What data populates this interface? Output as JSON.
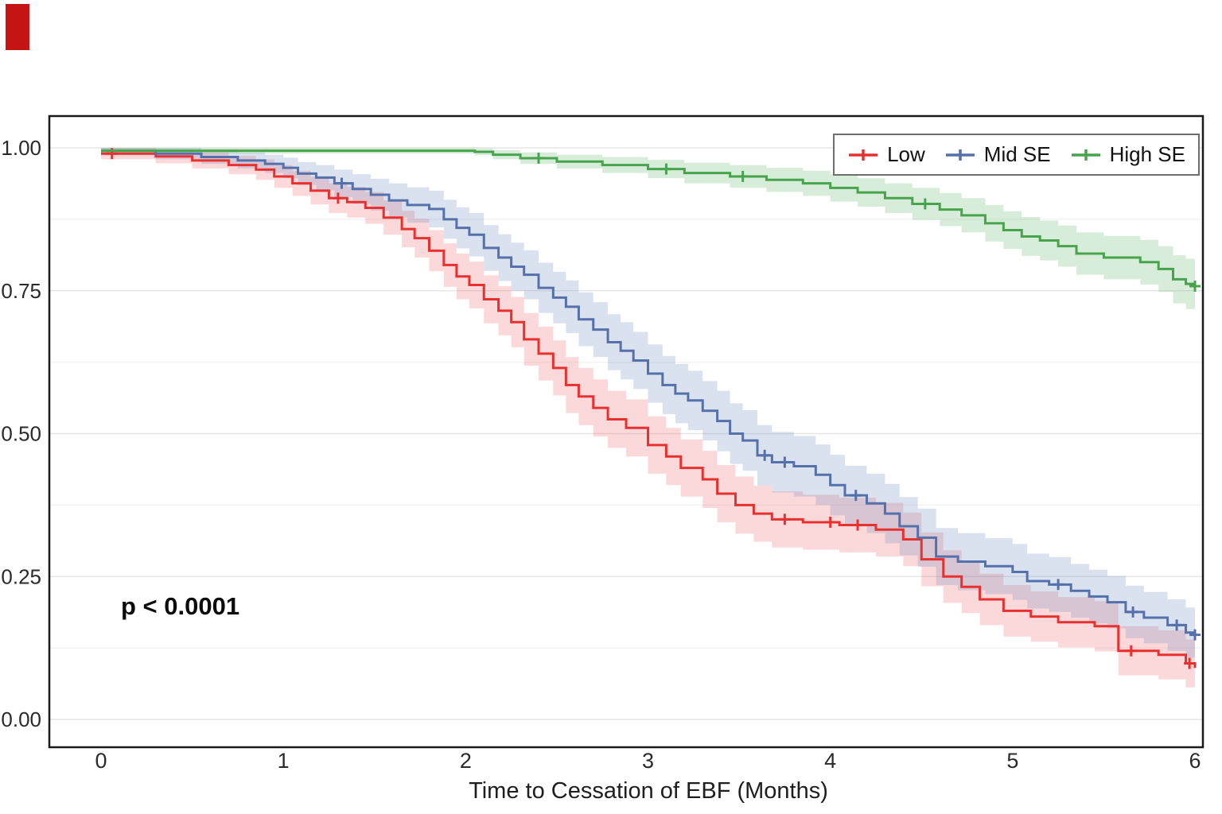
{
  "page": {
    "background": "#ffffff"
  },
  "corner_marker": {
    "color": "#c41414"
  },
  "chart_data": {
    "type": "line",
    "subtype": "kaplan_meier_step",
    "title": "",
    "xlabel": "Time to Cessation of EBF (Months)",
    "ylabel": "",
    "xlim": [
      0,
      6
    ],
    "ylim": [
      0,
      1.05
    ],
    "xticks": [
      "0",
      "1",
      "2",
      "3",
      "4",
      "5",
      "6"
    ],
    "yticks": [
      "0.00",
      "0.25",
      "0.50",
      "0.75",
      "1.00"
    ],
    "gridlines": [
      0,
      0.25,
      0.5,
      0.75,
      1.0
    ],
    "minor_gridlines": [
      0.125,
      0.375,
      0.625,
      0.875
    ],
    "grid_color": "#e6e6e6",
    "minor_grid_color": "#f3f3f3",
    "frame_color": "#1a1a1a",
    "annotation": "p < 0.0001",
    "legend_position": "top-right",
    "series": [
      {
        "name": "Low",
        "color": "#e8312f",
        "band_color": "rgba(238,80,90,0.22)",
        "points": [
          [
            0.0,
            0.99,
            0.01
          ],
          [
            0.3,
            0.985,
            0.012
          ],
          [
            0.5,
            0.978,
            0.014
          ],
          [
            0.7,
            0.97,
            0.016
          ],
          [
            0.85,
            0.962,
            0.018
          ],
          [
            0.95,
            0.95,
            0.02
          ],
          [
            1.05,
            0.938,
            0.022
          ],
          [
            1.15,
            0.925,
            0.024
          ],
          [
            1.25,
            0.912,
            0.026
          ],
          [
            1.35,
            0.905,
            0.027
          ],
          [
            1.45,
            0.895,
            0.028
          ],
          [
            1.55,
            0.878,
            0.03
          ],
          [
            1.65,
            0.858,
            0.032
          ],
          [
            1.72,
            0.842,
            0.034
          ],
          [
            1.8,
            0.82,
            0.036
          ],
          [
            1.88,
            0.795,
            0.038
          ],
          [
            1.95,
            0.775,
            0.04
          ],
          [
            2.02,
            0.76,
            0.041
          ],
          [
            2.1,
            0.735,
            0.042
          ],
          [
            2.18,
            0.715,
            0.043
          ],
          [
            2.25,
            0.695,
            0.044
          ],
          [
            2.32,
            0.665,
            0.046
          ],
          [
            2.4,
            0.64,
            0.047
          ],
          [
            2.48,
            0.615,
            0.048
          ],
          [
            2.55,
            0.585,
            0.049
          ],
          [
            2.62,
            0.565,
            0.05
          ],
          [
            2.7,
            0.545,
            0.05
          ],
          [
            2.78,
            0.525,
            0.05
          ],
          [
            2.88,
            0.51,
            0.05
          ],
          [
            3.0,
            0.48,
            0.05
          ],
          [
            3.1,
            0.46,
            0.05
          ],
          [
            3.18,
            0.44,
            0.05
          ],
          [
            3.3,
            0.42,
            0.05
          ],
          [
            3.38,
            0.395,
            0.05
          ],
          [
            3.48,
            0.375,
            0.05
          ],
          [
            3.58,
            0.36,
            0.049
          ],
          [
            3.68,
            0.35,
            0.049
          ],
          [
            3.85,
            0.345,
            0.048
          ],
          [
            4.05,
            0.34,
            0.048
          ],
          [
            4.25,
            0.332,
            0.047
          ],
          [
            4.4,
            0.315,
            0.047
          ],
          [
            4.5,
            0.28,
            0.047
          ],
          [
            4.62,
            0.25,
            0.046
          ],
          [
            4.72,
            0.232,
            0.046
          ],
          [
            4.82,
            0.21,
            0.045
          ],
          [
            4.95,
            0.19,
            0.045
          ],
          [
            5.1,
            0.18,
            0.044
          ],
          [
            5.25,
            0.17,
            0.044
          ],
          [
            5.45,
            0.163,
            0.044
          ],
          [
            5.58,
            0.12,
            0.043
          ],
          [
            5.8,
            0.113,
            0.043
          ],
          [
            5.95,
            0.098,
            0.042
          ],
          [
            6.0,
            0.09,
            0.042
          ]
        ],
        "censors": [
          [
            0.06,
            0.99
          ],
          [
            1.3,
            0.912
          ],
          [
            3.75,
            0.35
          ],
          [
            4.0,
            0.345
          ],
          [
            4.15,
            0.34
          ],
          [
            5.65,
            0.12
          ],
          [
            5.97,
            0.098
          ]
        ]
      },
      {
        "name": "Mid SE",
        "color": "#5571ab",
        "band_color": "rgba(110,140,190,0.25)",
        "points": [
          [
            0.0,
            0.995,
            0.008
          ],
          [
            0.3,
            0.99,
            0.01
          ],
          [
            0.55,
            0.984,
            0.012
          ],
          [
            0.75,
            0.978,
            0.014
          ],
          [
            0.9,
            0.972,
            0.016
          ],
          [
            1.0,
            0.965,
            0.018
          ],
          [
            1.08,
            0.955,
            0.02
          ],
          [
            1.18,
            0.948,
            0.022
          ],
          [
            1.28,
            0.938,
            0.024
          ],
          [
            1.38,
            0.928,
            0.026
          ],
          [
            1.48,
            0.918,
            0.028
          ],
          [
            1.58,
            0.908,
            0.03
          ],
          [
            1.68,
            0.9,
            0.031
          ],
          [
            1.8,
            0.893,
            0.032
          ],
          [
            1.88,
            0.875,
            0.034
          ],
          [
            1.95,
            0.86,
            0.036
          ],
          [
            2.02,
            0.848,
            0.038
          ],
          [
            2.1,
            0.825,
            0.04
          ],
          [
            2.18,
            0.808,
            0.041
          ],
          [
            2.25,
            0.792,
            0.042
          ],
          [
            2.32,
            0.778,
            0.043
          ],
          [
            2.4,
            0.755,
            0.044
          ],
          [
            2.48,
            0.738,
            0.045
          ],
          [
            2.55,
            0.722,
            0.046
          ],
          [
            2.62,
            0.7,
            0.047
          ],
          [
            2.7,
            0.682,
            0.048
          ],
          [
            2.78,
            0.66,
            0.049
          ],
          [
            2.85,
            0.645,
            0.05
          ],
          [
            2.92,
            0.628,
            0.05
          ],
          [
            3.0,
            0.605,
            0.051
          ],
          [
            3.08,
            0.585,
            0.051
          ],
          [
            3.15,
            0.57,
            0.052
          ],
          [
            3.22,
            0.558,
            0.052
          ],
          [
            3.3,
            0.54,
            0.052
          ],
          [
            3.38,
            0.522,
            0.053
          ],
          [
            3.45,
            0.5,
            0.053
          ],
          [
            3.52,
            0.488,
            0.053
          ],
          [
            3.6,
            0.462,
            0.053
          ],
          [
            3.68,
            0.45,
            0.053
          ],
          [
            3.8,
            0.443,
            0.053
          ],
          [
            3.92,
            0.428,
            0.053
          ],
          [
            4.0,
            0.41,
            0.053
          ],
          [
            4.08,
            0.392,
            0.052
          ],
          [
            4.2,
            0.378,
            0.052
          ],
          [
            4.3,
            0.36,
            0.052
          ],
          [
            4.38,
            0.338,
            0.051
          ],
          [
            4.48,
            0.318,
            0.051
          ],
          [
            4.58,
            0.285,
            0.05
          ],
          [
            4.7,
            0.276,
            0.05
          ],
          [
            4.85,
            0.268,
            0.049
          ],
          [
            5.0,
            0.258,
            0.049
          ],
          [
            5.08,
            0.242,
            0.048
          ],
          [
            5.2,
            0.236,
            0.048
          ],
          [
            5.32,
            0.225,
            0.047
          ],
          [
            5.42,
            0.215,
            0.047
          ],
          [
            5.52,
            0.205,
            0.046
          ],
          [
            5.62,
            0.188,
            0.046
          ],
          [
            5.72,
            0.178,
            0.045
          ],
          [
            5.85,
            0.165,
            0.045
          ],
          [
            5.95,
            0.152,
            0.044
          ],
          [
            6.0,
            0.148,
            0.044
          ]
        ],
        "censors": [
          [
            1.32,
            0.938
          ],
          [
            3.64,
            0.462
          ],
          [
            3.75,
            0.45
          ],
          [
            4.14,
            0.392
          ],
          [
            5.25,
            0.236
          ],
          [
            5.66,
            0.188
          ],
          [
            5.9,
            0.165
          ],
          [
            6.0,
            0.148
          ]
        ]
      },
      {
        "name": "High SE",
        "color": "#48a44c",
        "band_color": "rgba(110,190,120,0.28)",
        "points": [
          [
            0.0,
            0.995,
            0.005
          ],
          [
            1.0,
            0.995,
            0.005
          ],
          [
            2.05,
            0.993,
            0.006
          ],
          [
            2.15,
            0.988,
            0.008
          ],
          [
            2.3,
            0.982,
            0.01
          ],
          [
            2.5,
            0.976,
            0.012
          ],
          [
            2.75,
            0.97,
            0.014
          ],
          [
            3.0,
            0.963,
            0.016
          ],
          [
            3.2,
            0.956,
            0.018
          ],
          [
            3.45,
            0.95,
            0.02
          ],
          [
            3.65,
            0.944,
            0.021
          ],
          [
            3.85,
            0.938,
            0.022
          ],
          [
            4.0,
            0.93,
            0.024
          ],
          [
            4.15,
            0.922,
            0.025
          ],
          [
            4.3,
            0.912,
            0.026
          ],
          [
            4.45,
            0.902,
            0.028
          ],
          [
            4.6,
            0.892,
            0.029
          ],
          [
            4.72,
            0.882,
            0.03
          ],
          [
            4.85,
            0.868,
            0.032
          ],
          [
            4.95,
            0.856,
            0.033
          ],
          [
            5.05,
            0.845,
            0.034
          ],
          [
            5.15,
            0.838,
            0.035
          ],
          [
            5.25,
            0.828,
            0.036
          ],
          [
            5.35,
            0.815,
            0.037
          ],
          [
            5.5,
            0.808,
            0.038
          ],
          [
            5.7,
            0.8,
            0.039
          ],
          [
            5.8,
            0.788,
            0.04
          ],
          [
            5.88,
            0.77,
            0.042
          ],
          [
            5.95,
            0.762,
            0.044
          ],
          [
            6.0,
            0.758,
            0.045
          ]
        ],
        "censors": [
          [
            2.4,
            0.982
          ],
          [
            3.1,
            0.963
          ],
          [
            3.52,
            0.95
          ],
          [
            4.52,
            0.902
          ],
          [
            6.0,
            0.758
          ]
        ]
      }
    ]
  }
}
